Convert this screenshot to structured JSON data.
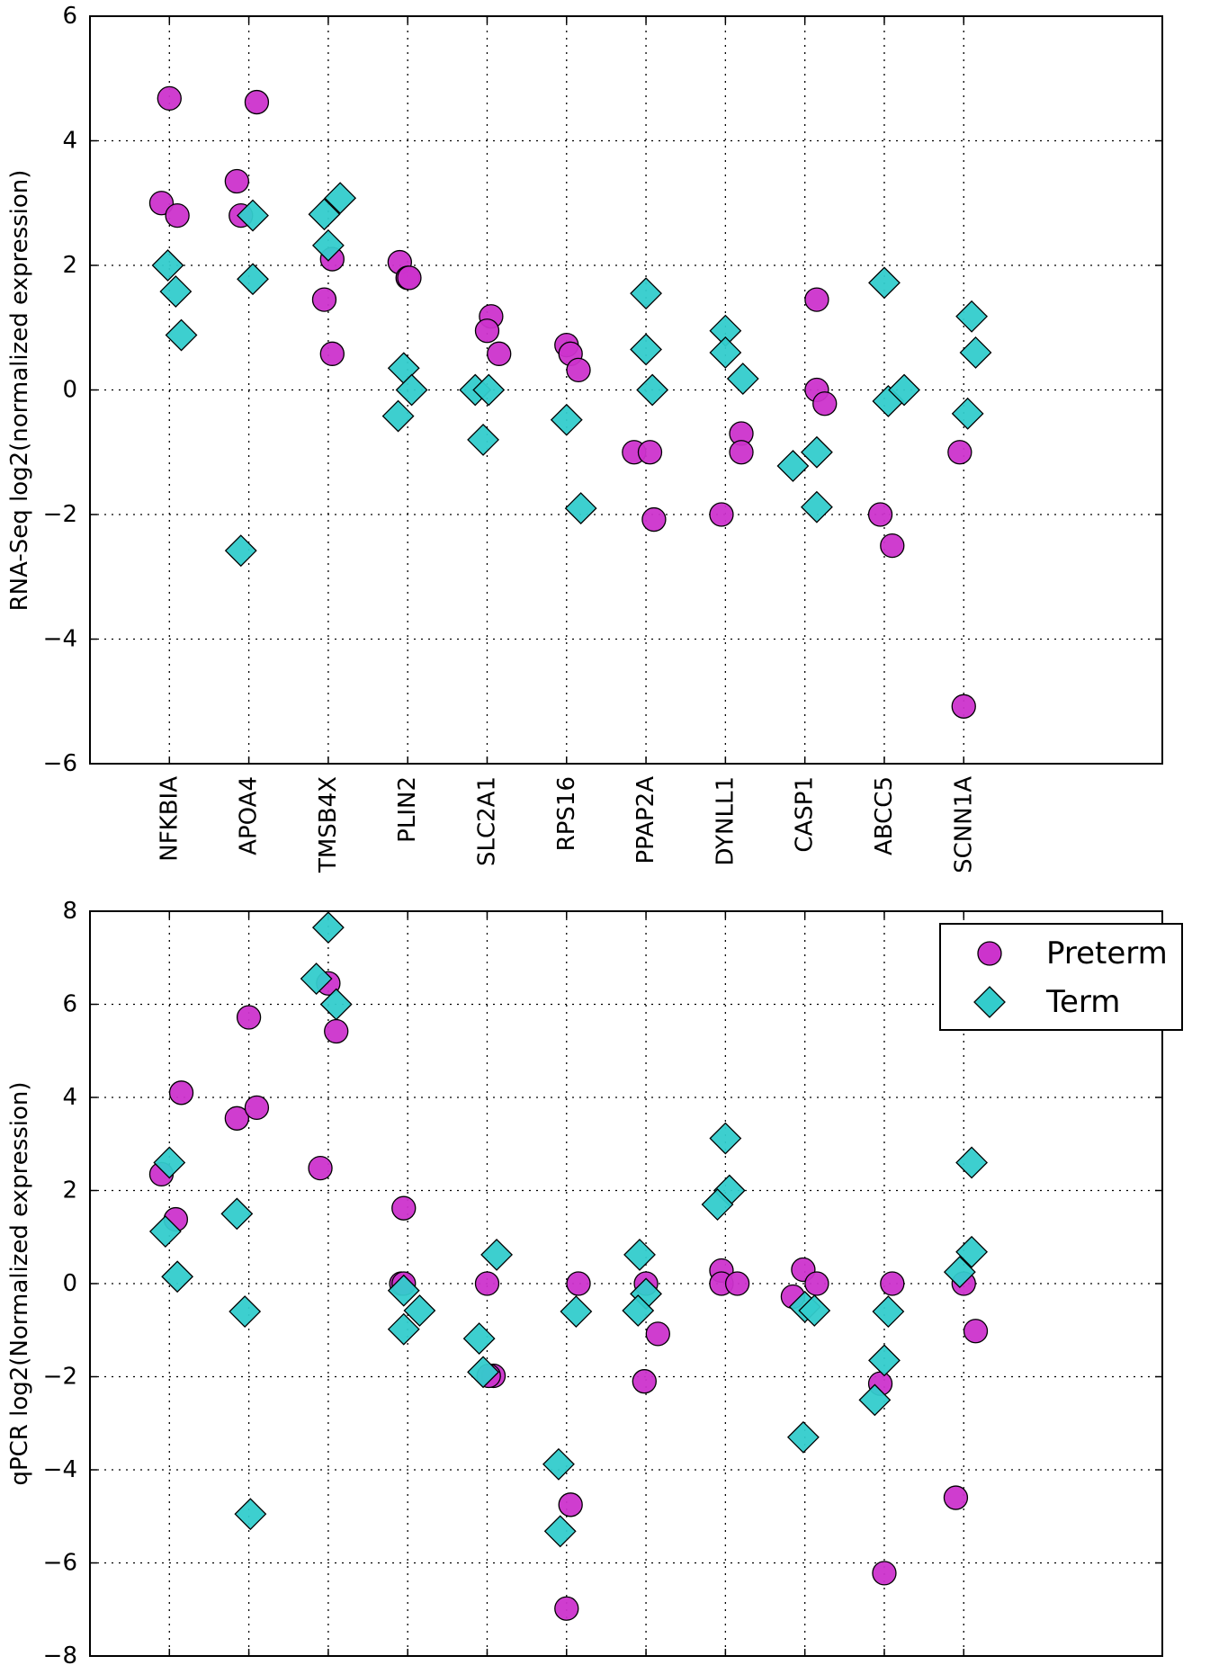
{
  "chart_data": [
    {
      "type": "scatter",
      "title": "",
      "xlabel": "",
      "ylabel": "RNA-Seq log2(normalized expression)",
      "ylim": [
        -6,
        6
      ],
      "yticks": [
        -6,
        -4,
        -2,
        0,
        2,
        4,
        6
      ],
      "ytick_labels": [
        "−6",
        "−4",
        "−2",
        "0",
        "2",
        "4",
        "6"
      ],
      "categories": [
        "NFKBIA",
        "APOA4",
        "TMSB4X",
        "PLIN2",
        "SLC2A1",
        "RPS16",
        "PPAP2A",
        "DYNLL1",
        "CASP1",
        "ABCC5",
        "SCNN1A"
      ],
      "grid": true,
      "series": [
        {
          "name": "Preterm",
          "marker": "circle",
          "color": "#cc33cc",
          "points": [
            {
              "x": 1,
              "y": 4.68
            },
            {
              "x": 0.9,
              "y": 3.0
            },
            {
              "x": 1.1,
              "y": 2.8
            },
            {
              "x": 2.1,
              "y": 4.62
            },
            {
              "x": 1.85,
              "y": 3.35
            },
            {
              "x": 1.9,
              "y": 2.8
            },
            {
              "x": 3.05,
              "y": 2.1
            },
            {
              "x": 2.95,
              "y": 1.45
            },
            {
              "x": 3.05,
              "y": 0.58
            },
            {
              "x": 3.9,
              "y": 2.05
            },
            {
              "x": 4.0,
              "y": 1.8
            },
            {
              "x": 4.02,
              "y": 1.8
            },
            {
              "x": 5.05,
              "y": 1.18
            },
            {
              "x": 5.0,
              "y": 0.95
            },
            {
              "x": 5.15,
              "y": 0.58
            },
            {
              "x": 6.0,
              "y": 0.72
            },
            {
              "x": 6.05,
              "y": 0.58
            },
            {
              "x": 6.15,
              "y": 0.32
            },
            {
              "x": 6.85,
              "y": -1.0
            },
            {
              "x": 7.05,
              "y": -1.0
            },
            {
              "x": 7.1,
              "y": -2.08
            },
            {
              "x": 8.2,
              "y": -0.7
            },
            {
              "x": 8.2,
              "y": -1.0
            },
            {
              "x": 7.95,
              "y": -2.0
            },
            {
              "x": 9.15,
              "y": 1.45
            },
            {
              "x": 9.15,
              "y": 0.0
            },
            {
              "x": 9.25,
              "y": -0.22
            },
            {
              "x": 9.95,
              "y": -2.0
            },
            {
              "x": 10.1,
              "y": -2.5
            },
            {
              "x": 10.95,
              "y": -1.0
            },
            {
              "x": 11.0,
              "y": -5.08
            }
          ]
        },
        {
          "name": "Term",
          "marker": "diamond",
          "color": "#33cccc",
          "points": [
            {
              "x": 0.98,
              "y": 2.0
            },
            {
              "x": 1.08,
              "y": 1.58
            },
            {
              "x": 1.15,
              "y": 0.88
            },
            {
              "x": 2.05,
              "y": 2.8
            },
            {
              "x": 2.05,
              "y": 1.78
            },
            {
              "x": 1.9,
              "y": -2.58
            },
            {
              "x": 3.15,
              "y": 3.08
            },
            {
              "x": 2.95,
              "y": 2.82
            },
            {
              "x": 3.0,
              "y": 2.32
            },
            {
              "x": 3.95,
              "y": 0.35
            },
            {
              "x": 4.05,
              "y": 0.0
            },
            {
              "x": 3.88,
              "y": -0.42
            },
            {
              "x": 4.85,
              "y": 0.0
            },
            {
              "x": 5.02,
              "y": 0.0
            },
            {
              "x": 4.95,
              "y": -0.8
            },
            {
              "x": 6.0,
              "y": -0.48
            },
            {
              "x": 6.18,
              "y": -1.9
            },
            {
              "x": 7.0,
              "y": 1.55
            },
            {
              "x": 7.0,
              "y": 0.65
            },
            {
              "x": 7.08,
              "y": 0.0
            },
            {
              "x": 8.0,
              "y": 0.95
            },
            {
              "x": 8.0,
              "y": 0.6
            },
            {
              "x": 8.22,
              "y": 0.18
            },
            {
              "x": 8.85,
              "y": -1.22
            },
            {
              "x": 9.15,
              "y": -1.0
            },
            {
              "x": 9.15,
              "y": -1.88
            },
            {
              "x": 10.0,
              "y": 1.72
            },
            {
              "x": 10.05,
              "y": -0.18
            },
            {
              "x": 10.25,
              "y": 0.0
            },
            {
              "x": 11.1,
              "y": 1.18
            },
            {
              "x": 11.15,
              "y": 0.6
            },
            {
              "x": 11.05,
              "y": -0.38
            }
          ]
        }
      ]
    },
    {
      "type": "scatter",
      "title": "",
      "xlabel": "",
      "ylabel": "qPCR log2(Normalized expression)",
      "ylim": [
        -8,
        8
      ],
      "yticks": [
        -8,
        -6,
        -4,
        -2,
        0,
        2,
        4,
        6,
        8
      ],
      "ytick_labels": [
        "−8",
        "−6",
        "−4",
        "−2",
        "0",
        "2",
        "4",
        "6",
        "8"
      ],
      "grid": true,
      "legend": {
        "position": "top-right",
        "entries": [
          "Preterm",
          "Term"
        ]
      },
      "series": [
        {
          "name": "Preterm",
          "marker": "circle",
          "color": "#cc33cc",
          "points": [
            {
              "x": 1.15,
              "y": 4.1
            },
            {
              "x": 0.9,
              "y": 2.35
            },
            {
              "x": 1.08,
              "y": 1.38
            },
            {
              "x": 2.0,
              "y": 5.72
            },
            {
              "x": 1.85,
              "y": 3.55
            },
            {
              "x": 2.1,
              "y": 3.78
            },
            {
              "x": 3.0,
              "y": 6.45
            },
            {
              "x": 3.1,
              "y": 5.42
            },
            {
              "x": 2.9,
              "y": 2.48
            },
            {
              "x": 3.95,
              "y": 1.62
            },
            {
              "x": 3.92,
              "y": 0.0
            },
            {
              "x": 3.95,
              "y": 0.0
            },
            {
              "x": 5.0,
              "y": 0.0
            },
            {
              "x": 5.08,
              "y": -1.98
            },
            {
              "x": 5.02,
              "y": -1.98
            },
            {
              "x": 6.15,
              "y": 0.0
            },
            {
              "x": 6.05,
              "y": -4.75
            },
            {
              "x": 6.0,
              "y": -6.98
            },
            {
              "x": 7.0,
              "y": 0.0
            },
            {
              "x": 7.15,
              "y": -1.08
            },
            {
              "x": 6.98,
              "y": -2.1
            },
            {
              "x": 7.95,
              "y": 0.28
            },
            {
              "x": 7.95,
              "y": 0.0
            },
            {
              "x": 8.15,
              "y": 0.0
            },
            {
              "x": 8.98,
              "y": 0.3
            },
            {
              "x": 8.85,
              "y": -0.28
            },
            {
              "x": 9.15,
              "y": 0.0
            },
            {
              "x": 10.1,
              "y": 0.0
            },
            {
              "x": 9.95,
              "y": -2.15
            },
            {
              "x": 10.0,
              "y": -6.22
            },
            {
              "x": 11.0,
              "y": 0.0
            },
            {
              "x": 11.15,
              "y": -1.02
            },
            {
              "x": 10.9,
              "y": -4.6
            }
          ]
        },
        {
          "name": "Term",
          "marker": "diamond",
          "color": "#33cccc",
          "points": [
            {
              "x": 1.0,
              "y": 2.6
            },
            {
              "x": 0.95,
              "y": 1.12
            },
            {
              "x": 1.1,
              "y": 0.15
            },
            {
              "x": 1.85,
              "y": 1.5
            },
            {
              "x": 1.95,
              "y": -0.6
            },
            {
              "x": 2.02,
              "y": -4.95
            },
            {
              "x": 3.0,
              "y": 7.65
            },
            {
              "x": 2.85,
              "y": 6.55
            },
            {
              "x": 3.1,
              "y": 6.0
            },
            {
              "x": 3.95,
              "y": -0.15
            },
            {
              "x": 4.15,
              "y": -0.58
            },
            {
              "x": 3.95,
              "y": -0.98
            },
            {
              "x": 5.12,
              "y": 0.62
            },
            {
              "x": 4.9,
              "y": -1.18
            },
            {
              "x": 4.95,
              "y": -1.9
            },
            {
              "x": 6.12,
              "y": -0.6
            },
            {
              "x": 5.9,
              "y": -3.88
            },
            {
              "x": 5.92,
              "y": -5.32
            },
            {
              "x": 6.92,
              "y": 0.62
            },
            {
              "x": 7.0,
              "y": -0.22
            },
            {
              "x": 6.9,
              "y": -0.58
            },
            {
              "x": 8.0,
              "y": 3.12
            },
            {
              "x": 8.05,
              "y": 2.0
            },
            {
              "x": 7.9,
              "y": 1.7
            },
            {
              "x": 9.0,
              "y": -0.5
            },
            {
              "x": 9.12,
              "y": -0.58
            },
            {
              "x": 8.98,
              "y": -3.3
            },
            {
              "x": 10.05,
              "y": -0.6
            },
            {
              "x": 10.0,
              "y": -1.65
            },
            {
              "x": 9.88,
              "y": -2.5
            },
            {
              "x": 11.1,
              "y": 2.6
            },
            {
              "x": 11.1,
              "y": 0.68
            },
            {
              "x": 10.95,
              "y": 0.25
            }
          ]
        }
      ]
    }
  ]
}
